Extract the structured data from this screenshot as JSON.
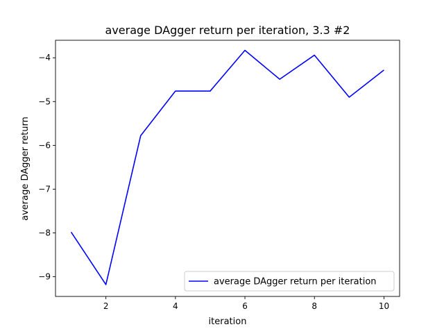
{
  "chart_data": {
    "type": "line",
    "title": "average DAgger return per iteration, 3.3 #2",
    "xlabel": "iteration",
    "ylabel": "average DAgger return",
    "xlim": [
      0.55,
      10.45
    ],
    "ylim": [
      -9.45,
      -3.6
    ],
    "xticks": [
      2,
      4,
      6,
      8,
      10
    ],
    "yticks": [
      -9,
      -8,
      -7,
      -6,
      -5,
      -4
    ],
    "xtick_labels": [
      "2",
      "4",
      "6",
      "8",
      "10"
    ],
    "ytick_labels": [
      "−9",
      "−8",
      "−7",
      "−6",
      "−5",
      "−4"
    ],
    "grid": false,
    "legend_location": "lower-right",
    "series": [
      {
        "name": "average DAgger return per iteration",
        "color": "#0000ff",
        "x": [
          1,
          2,
          3,
          4,
          5,
          6,
          7,
          8,
          9,
          10
        ],
        "values": [
          -7.98,
          -9.18,
          -5.78,
          -4.76,
          -4.76,
          -3.83,
          -4.49,
          -3.94,
          -4.9,
          -4.28
        ]
      }
    ]
  }
}
